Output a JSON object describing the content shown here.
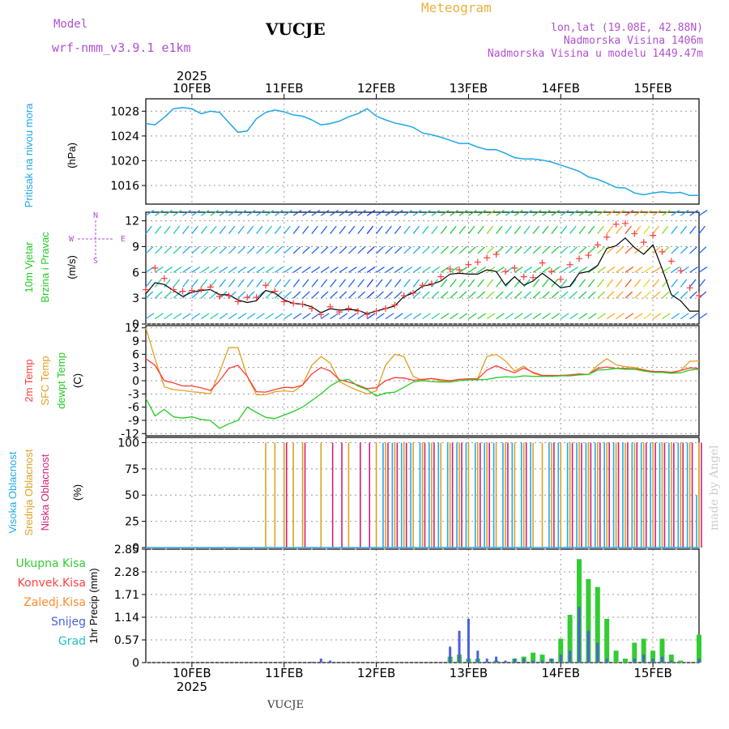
{
  "header": {
    "model_label": "Model",
    "model_name": "wrf-nmm_v3.9.1  e1km",
    "station": "VUCJE",
    "product": "Meteogram",
    "lonlat": "lon,lat (19.08E, 42.88N)",
    "elev": "Nadmorska Visina 1406m",
    "elev_model": "Nadmorska Visina u modelu 1449.47m",
    "footer_station": "VUCJE",
    "credit": "made by Angel"
  },
  "colors": {
    "pressure": "#1fa6e8",
    "temp2m": "#ff3b3b",
    "sfc": "#e0a020",
    "dewpt": "#22cc22",
    "cloud_high": "#22aaee",
    "cloud_mid": "#e0a020",
    "cloud_low": "#d0207a",
    "precip_total": "#33cc33",
    "precip_conv": "#ff4040",
    "precip_frz": "#ff8c2a",
    "precip_snow": "#4b5fe0",
    "precip_hail": "#22c0c0",
    "title_magenta": "#b050d0",
    "title_orange": "#e8b040"
  },
  "axes": {
    "year": "2025",
    "days": [
      "10FEB",
      "11FEB",
      "12FEB",
      "13FEB",
      "14FEB",
      "15FEB"
    ],
    "time_range_days": [
      -0.5,
      5.5
    ]
  },
  "panels": {
    "pressure": {
      "label": "Pritisak na nivou mora",
      "unit": "(hPa)",
      "ylim": [
        1013,
        1030
      ],
      "ticks": [
        "1016",
        "1020",
        "1024",
        "1028"
      ]
    },
    "wind": {
      "label1": "10m Vjetar",
      "label2": "Brzina i Pravac",
      "unit": "(m/s)",
      "ylim": [
        0,
        13
      ],
      "ticks": [
        "0",
        "3",
        "6",
        "9",
        "12"
      ],
      "compass": {
        "n": "N",
        "s": "S",
        "w": "W",
        "e": "E"
      }
    },
    "temp": {
      "label1": "2m Temp",
      "label2": "SFC Temp",
      "label3": "dewpt Temp",
      "unit": "(C)",
      "ylim": [
        -12.5,
        12.5
      ],
      "ticks": [
        "-12",
        "-9",
        "-6",
        "-3",
        "0",
        "3",
        "6",
        "9",
        "12"
      ]
    },
    "cloud": {
      "label1": "Visoka Oblacnost",
      "label2": "Srednja Oblacnost",
      "label3": "Niska Oblacnost",
      "unit": "(%)",
      "ylim": [
        0,
        105
      ],
      "ticks": [
        "0",
        "25",
        "50",
        "75",
        "100"
      ]
    },
    "precip": {
      "unit": "1hr Precip (mm)",
      "ylim": [
        0,
        2.85
      ],
      "ticks": [
        "0",
        "0.57",
        "1.14",
        "1.71",
        "2.28",
        "2.85"
      ],
      "legend": [
        "Ukupna Kisa",
        "Konvek.Kisa",
        "Zaledj.Kisa",
        "Snijeg",
        "Grad"
      ]
    }
  },
  "chart_data": [
    {
      "type": "line",
      "title": "Pritisak na nivou mora",
      "ylabel": "(hPa)",
      "x_unit": "days since 10FEB 2025 00UTC",
      "x": [
        -0.5,
        -0.4,
        -0.3,
        -0.2,
        -0.1,
        0,
        0.1,
        0.2,
        0.3,
        0.4,
        0.5,
        0.6,
        0.7,
        0.8,
        0.9,
        1,
        1.1,
        1.2,
        1.3,
        1.4,
        1.5,
        1.6,
        1.7,
        1.8,
        1.9,
        2,
        2.1,
        2.2,
        2.3,
        2.4,
        2.5,
        2.6,
        2.7,
        2.8,
        2.9,
        3,
        3.1,
        3.2,
        3.3,
        3.4,
        3.5,
        3.6,
        3.7,
        3.8,
        3.9,
        4,
        4.1,
        4.2,
        4.3,
        4.4,
        4.5,
        4.6,
        4.7,
        4.8,
        4.9,
        5,
        5.1,
        5.2,
        5.3,
        5.4,
        5.5
      ],
      "series": [
        {
          "name": "Pritisak na nivou mora",
          "values": [
            1026,
            1025.8,
            1027,
            1028.4,
            1028.6,
            1028.4,
            1027.6,
            1028,
            1027.8,
            1026.2,
            1024.6,
            1024.8,
            1026.8,
            1027.8,
            1028.2,
            1027.9,
            1027.4,
            1027.2,
            1026.6,
            1025.8,
            1026,
            1026.4,
            1027.1,
            1027.6,
            1028.4,
            1027.2,
            1026.6,
            1026.1,
            1025.8,
            1025.4,
            1024.5,
            1024.2,
            1023.8,
            1023.3,
            1022.8,
            1022.8,
            1022.2,
            1021.8,
            1021.8,
            1021.2,
            1020.5,
            1020.3,
            1020.3,
            1020.1,
            1019.8,
            1019.3,
            1018.8,
            1018.3,
            1017.4,
            1017,
            1016.4,
            1015.7,
            1015.6,
            1014.8,
            1014.5,
            1014.8,
            1015,
            1014.8,
            1014.9,
            1014.4,
            1014.4
          ]
        }
      ]
    },
    {
      "type": "line",
      "title": "10m Vjetar Brzina i Pravac",
      "ylabel": "(m/s)",
      "x": [
        -0.5,
        -0.4,
        -0.3,
        -0.2,
        -0.1,
        0,
        0.1,
        0.2,
        0.3,
        0.4,
        0.5,
        0.6,
        0.7,
        0.8,
        0.9,
        1,
        1.1,
        1.2,
        1.3,
        1.4,
        1.5,
        1.6,
        1.7,
        1.8,
        1.9,
        2,
        2.1,
        2.2,
        2.3,
        2.4,
        2.5,
        2.6,
        2.7,
        2.8,
        2.9,
        3,
        3.1,
        3.2,
        3.3,
        3.4,
        3.5,
        3.6,
        3.7,
        3.8,
        3.9,
        4,
        4.1,
        4.2,
        4.3,
        4.4,
        4.5,
        4.6,
        4.7,
        4.8,
        4.9,
        5,
        5.1,
        5.2,
        5.3,
        5.4,
        5.5
      ],
      "series": [
        {
          "name": "speed",
          "values": [
            3.5,
            4.8,
            4.6,
            3.9,
            3.2,
            3.7,
            3.9,
            4,
            3.4,
            3.4,
            2.8,
            2.5,
            2.7,
            3.9,
            3.6,
            2.8,
            2.4,
            2.3,
            2,
            1.3,
            1.8,
            1.6,
            1.7,
            1.6,
            1.2,
            1.5,
            1.8,
            2.1,
            3.2,
            3.6,
            4.4,
            4.6,
            5,
            5.8,
            5.9,
            5.8,
            5.8,
            6.3,
            6.1,
            4.5,
            5.5,
            4.5,
            5,
            5.9,
            5.1,
            4.2,
            4.4,
            5.9,
            6.1,
            6.8,
            8.8,
            9.1,
            10,
            8.9,
            8.1,
            9.2,
            6.4,
            3.4,
            2.7,
            1.5,
            1.5
          ]
        },
        {
          "name": "gust",
          "values": [
            4,
            6.5,
            5.3,
            4,
            3.8,
            3.9,
            4,
            4.3,
            3.2,
            3.3,
            2.6,
            3.1,
            3.1,
            4.5,
            3.8,
            2.6,
            2.4,
            2.3,
            1.8,
            1.1,
            2,
            1.4,
            1.8,
            1.5,
            1.1,
            1.5,
            1.8,
            2.2,
            3.3,
            3.6,
            4.5,
            4.7,
            5.5,
            6.4,
            6.3,
            6.9,
            7.2,
            7.7,
            8.1,
            6.1,
            6.5,
            5.5,
            5.4,
            7.1,
            6.1,
            5.2,
            6.9,
            7.6,
            8,
            9.2,
            10.1,
            11.6,
            11.7,
            10.5,
            9.5,
            10.3,
            8.4,
            7.3,
            6.2,
            4.2,
            3.3
          ]
        }
      ]
    },
    {
      "type": "line",
      "title": "2m Temp / SFC Temp / dewpt Temp",
      "ylabel": "(C)",
      "x": [
        -0.5,
        -0.4,
        -0.3,
        -0.2,
        -0.1,
        0,
        0.1,
        0.2,
        0.3,
        0.4,
        0.5,
        0.6,
        0.7,
        0.8,
        0.9,
        1,
        1.1,
        1.2,
        1.3,
        1.4,
        1.5,
        1.6,
        1.7,
        1.8,
        1.9,
        2,
        2.1,
        2.2,
        2.3,
        2.4,
        2.5,
        2.6,
        2.7,
        2.8,
        2.9,
        3,
        3.1,
        3.2,
        3.3,
        3.4,
        3.5,
        3.6,
        3.7,
        3.8,
        3.9,
        4,
        4.1,
        4.2,
        4.3,
        4.4,
        4.5,
        4.6,
        4.7,
        4.8,
        4.9,
        5,
        5.1,
        5.2,
        5.3,
        5.4,
        5.5
      ],
      "series": [
        {
          "name": "2m Temp",
          "values": [
            5,
            3.5,
            0,
            -0.5,
            -1.2,
            -1.2,
            -1.6,
            -2.2,
            0,
            2.8,
            3.5,
            1,
            -2.5,
            -2.6,
            -2,
            -1.5,
            -1.6,
            -1,
            1.5,
            3,
            2.2,
            0.2,
            -0.3,
            -1,
            -1.8,
            -1.6,
            0,
            0.7,
            0.6,
            0.1,
            0.3,
            0.5,
            0.2,
            0,
            0.3,
            0.4,
            0.4,
            2.4,
            3.4,
            2.5,
            1.8,
            2.9,
            1.9,
            1.2,
            1.2,
            1.2,
            1.3,
            1.5,
            1.4,
            2.8,
            3.1,
            2.8,
            2.8,
            2.7,
            2.4,
            2.1,
            2.1,
            1.9,
            2.3,
            2.9,
            2.8
          ]
        },
        {
          "name": "SFC Temp",
          "values": [
            12,
            5,
            -1.4,
            -2,
            -2.2,
            -2.5,
            -2.7,
            -3,
            2,
            7.5,
            7.5,
            1,
            -3.2,
            -3.2,
            -2.5,
            -2.3,
            -2.5,
            -1,
            3.5,
            5.5,
            4,
            -0.2,
            -1.3,
            -2.2,
            -3,
            -2.3,
            3.5,
            6,
            5.5,
            1,
            0.1,
            0.5,
            -0.1,
            -0.1,
            0.3,
            0.4,
            0.5,
            5.5,
            6,
            4.5,
            2.2,
            3.3,
            1.7,
            1.1,
            1.1,
            1.1,
            1.3,
            1.5,
            1.4,
            3.5,
            5,
            3.6,
            3.2,
            3,
            2.5,
            2,
            1.9,
            1.7,
            2.3,
            4.4,
            4.5
          ]
        },
        {
          "name": "dewpt Temp",
          "values": [
            -4,
            -8,
            -6.5,
            -8.2,
            -8.5,
            -8.2,
            -8.8,
            -9,
            -10.8,
            -9.8,
            -9,
            -6,
            -7.2,
            -8.3,
            -8.6,
            -7.8,
            -7,
            -6,
            -4.5,
            -3,
            -1.2,
            0,
            0.3,
            -1.2,
            -2,
            -3.5,
            -2.8,
            -2.6,
            -1.5,
            -0.3,
            0,
            -0.2,
            -0.3,
            -0.3,
            0,
            0.2,
            0.2,
            0.3,
            0.7,
            0.9,
            0.8,
            1.1,
            1,
            1,
            1,
            1.1,
            1.1,
            1.3,
            1.4,
            2.4,
            2.5,
            2.8,
            2.6,
            2.6,
            2.2,
            1.9,
            1.9,
            1.7,
            1.8,
            2.4,
            2.6
          ]
        }
      ]
    },
    {
      "type": "bar",
      "title": "Visoka / Srednja / Niska Oblacnost",
      "ylabel": "(%)",
      "x": [
        -0.5,
        -0.4,
        -0.3,
        -0.2,
        -0.1,
        0,
        0.1,
        0.2,
        0.3,
        0.4,
        0.5,
        0.6,
        0.7,
        0.8,
        0.9,
        1,
        1.1,
        1.2,
        1.3,
        1.4,
        1.5,
        1.6,
        1.7,
        1.8,
        1.9,
        2,
        2.1,
        2.2,
        2.3,
        2.4,
        2.5,
        2.6,
        2.7,
        2.8,
        2.9,
        3,
        3.1,
        3.2,
        3.3,
        3.4,
        3.5,
        3.6,
        3.7,
        3.8,
        3.9,
        4,
        4.1,
        4.2,
        4.3,
        4.4,
        4.5,
        4.6,
        4.7,
        4.8,
        4.9,
        5,
        5.1,
        5.2,
        5.3,
        5.4,
        5.5
      ],
      "series": [
        {
          "name": "Visoka Oblacnost",
          "values": [
            0,
            0,
            0,
            0,
            0,
            0,
            0,
            0,
            0,
            0,
            0,
            0,
            0,
            0,
            0,
            0,
            0,
            0,
            0,
            0,
            0,
            0,
            0,
            0,
            0,
            0,
            100,
            100,
            100,
            100,
            100,
            100,
            100,
            100,
            100,
            100,
            100,
            100,
            100,
            100,
            100,
            100,
            100,
            0,
            100,
            100,
            100,
            100,
            100,
            100,
            100,
            100,
            100,
            100,
            100,
            100,
            100,
            100,
            100,
            100,
            50
          ]
        },
        {
          "name": "Srednja Oblacnost",
          "values": [
            0,
            0,
            0,
            0,
            0,
            0,
            0,
            0,
            0,
            0,
            0,
            0,
            0,
            100,
            100,
            100,
            100,
            100,
            0,
            100,
            0,
            0,
            100,
            0,
            0,
            100,
            100,
            100,
            100,
            100,
            100,
            100,
            100,
            100,
            100,
            100,
            100,
            100,
            100,
            100,
            100,
            100,
            100,
            100,
            100,
            100,
            100,
            100,
            100,
            100,
            100,
            100,
            100,
            100,
            100,
            100,
            100,
            100,
            100,
            100,
            100
          ]
        },
        {
          "name": "Niska Oblacnost",
          "values": [
            0,
            0,
            0,
            0,
            0,
            0,
            0,
            0,
            0,
            0,
            0,
            0,
            0,
            0,
            0,
            100,
            0,
            100,
            0,
            0,
            100,
            100,
            0,
            100,
            100,
            0,
            100,
            100,
            100,
            0,
            100,
            100,
            0,
            100,
            100,
            0,
            100,
            100,
            0,
            100,
            0,
            100,
            0,
            0,
            100,
            0,
            100,
            100,
            100,
            100,
            100,
            100,
            100,
            100,
            100,
            100,
            100,
            100,
            100,
            100,
            100
          ]
        }
      ]
    },
    {
      "type": "bar",
      "title": "1hr Precip",
      "ylabel": "(mm)",
      "x": [
        -0.5,
        -0.4,
        -0.3,
        -0.2,
        -0.1,
        0,
        0.1,
        0.2,
        0.3,
        0.4,
        0.5,
        0.6,
        0.7,
        0.8,
        0.9,
        1,
        1.1,
        1.2,
        1.3,
        1.4,
        1.5,
        1.6,
        1.7,
        1.8,
        1.9,
        2,
        2.1,
        2.2,
        2.3,
        2.4,
        2.5,
        2.6,
        2.7,
        2.8,
        2.9,
        3,
        3.1,
        3.2,
        3.3,
        3.4,
        3.5,
        3.6,
        3.7,
        3.8,
        3.9,
        4,
        4.1,
        4.2,
        4.3,
        4.4,
        4.5,
        4.6,
        4.7,
        4.8,
        4.9,
        5,
        5.1,
        5.2,
        5.3,
        5.4,
        5.5
      ],
      "series": [
        {
          "name": "Ukupna Kisa",
          "values": [
            0,
            0,
            0,
            0,
            0,
            0,
            0,
            0,
            0,
            0,
            0,
            0,
            0,
            0,
            0,
            0,
            0,
            0,
            0,
            0,
            0,
            0,
            0,
            0,
            0,
            0,
            0,
            0,
            0,
            0,
            0,
            0,
            0,
            0.15,
            0.2,
            0.1,
            0.1,
            0,
            0.05,
            0,
            0.1,
            0.15,
            0.25,
            0.2,
            0.1,
            0.6,
            1.2,
            2.6,
            2.1,
            1.9,
            1.1,
            0.3,
            0.1,
            0.5,
            0.6,
            0.3,
            0.6,
            0.2,
            0.05,
            0,
            0.7
          ]
        },
        {
          "name": "Snijeg",
          "values": [
            0,
            0,
            0,
            0,
            0,
            0,
            0,
            0,
            0,
            0,
            0,
            0,
            0,
            0,
            0,
            0,
            0,
            0,
            0.02,
            0.1,
            0.05,
            0.02,
            0,
            0,
            0,
            0,
            0,
            0,
            0,
            0,
            0,
            0,
            0.02,
            0.4,
            0.8,
            1.1,
            0.3,
            0.1,
            0.15,
            0.05,
            0.1,
            0.1,
            0.05,
            0.05,
            0.1,
            0.2,
            0.3,
            1.4,
            0.8,
            0.5,
            0.1,
            0,
            0,
            0.1,
            0.2,
            0.1,
            0.15,
            0.05,
            0,
            0,
            0.1
          ]
        }
      ]
    }
  ]
}
